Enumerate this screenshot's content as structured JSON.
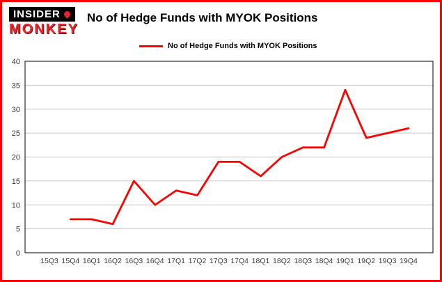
{
  "logo": {
    "line1": "INSIDER",
    "line2": "MONKEY"
  },
  "header": {
    "title": "No of Hedge Funds with MYOK Positions"
  },
  "legend": {
    "label": "No of Hedge Funds with MYOK Positions"
  },
  "chart_data": {
    "type": "line",
    "title": "No of Hedge Funds with MYOK Positions",
    "categories": [
      "15Q3",
      "15Q4",
      "16Q1",
      "16Q2",
      "16Q3",
      "16Q4",
      "17Q1",
      "17Q2",
      "17Q3",
      "17Q4",
      "18Q1",
      "18Q2",
      "18Q3",
      "18Q4",
      "19Q1",
      "19Q2",
      "19Q3",
      "19Q4"
    ],
    "values": [
      null,
      7,
      7,
      6,
      15,
      10,
      13,
      12,
      19,
      19,
      16,
      20,
      22,
      22,
      34,
      24,
      25,
      26
    ],
    "ylim": [
      0,
      40
    ],
    "yticks": [
      0,
      5,
      10,
      15,
      20,
      25,
      30,
      35,
      40
    ],
    "grid": true,
    "legend_position": "top",
    "line_color": "#fe0000",
    "colors": {
      "frame_border": "#ff0000",
      "grid": "#c8c8c8",
      "axis": "#000000",
      "tick_label": "#3a3a3a"
    }
  }
}
